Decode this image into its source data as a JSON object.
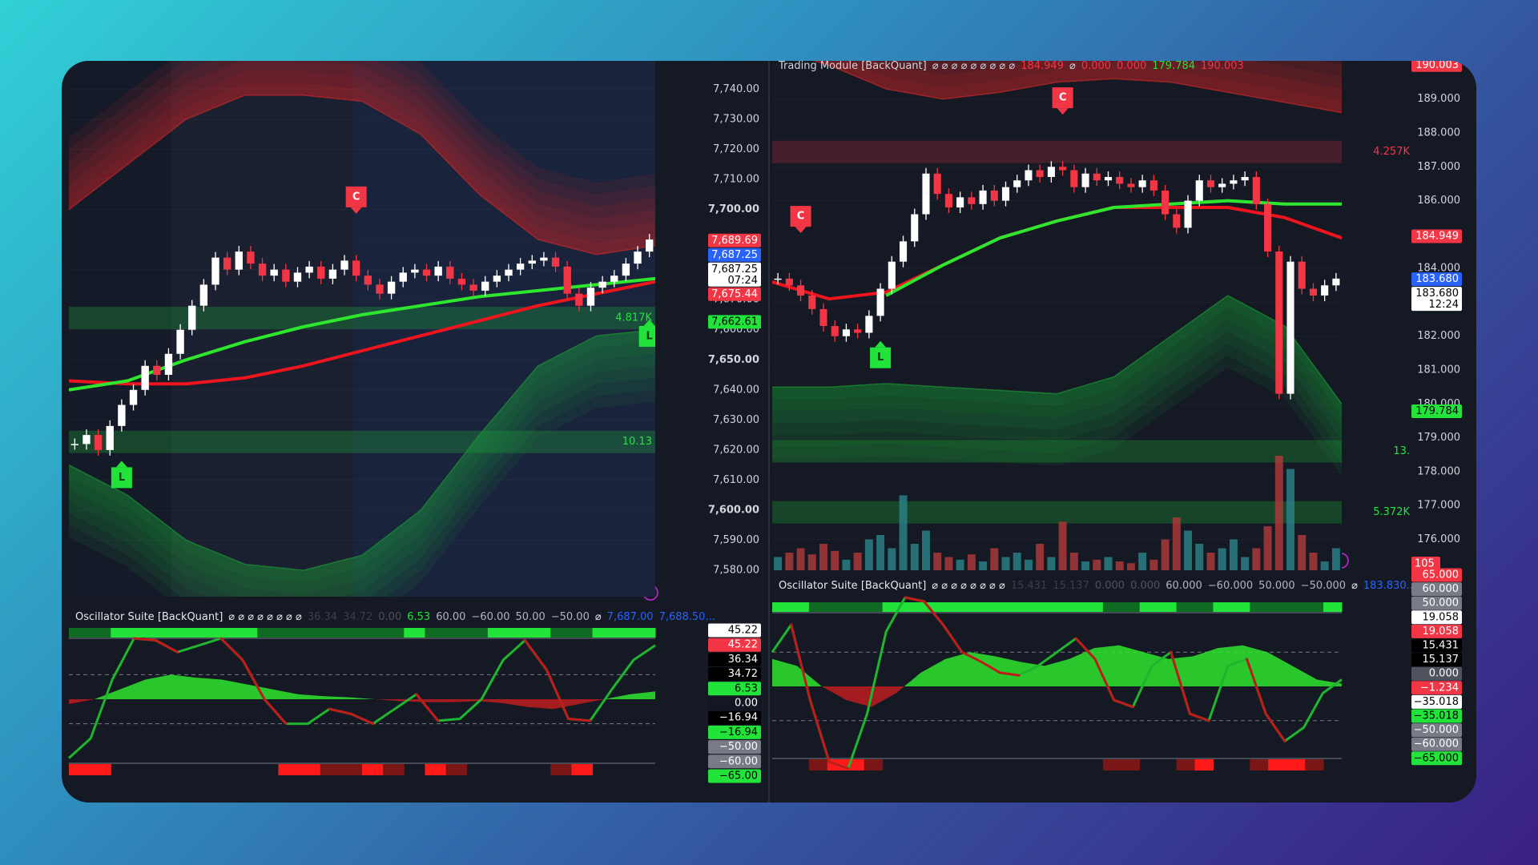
{
  "left": {
    "price_ticks": [
      {
        "value": 7740,
        "label": "7,740.00"
      },
      {
        "value": 7730,
        "label": "7,730.00"
      },
      {
        "value": 7720,
        "label": "7,720.00"
      },
      {
        "value": 7710,
        "label": "7,710.00"
      },
      {
        "value": 7700,
        "label": "7,700.00"
      },
      {
        "value": 7690,
        "label": "7,690.00"
      },
      {
        "value": 7680,
        "label": "7,680.00"
      },
      {
        "value": 7670,
        "label": "7,670.00"
      },
      {
        "value": 7660,
        "label": "7,660.00"
      },
      {
        "value": 7650,
        "label": "7,650.00"
      },
      {
        "value": 7640,
        "label": "7,640.00"
      },
      {
        "value": 7630,
        "label": "7,630.00"
      },
      {
        "value": 7620,
        "label": "7,620.00"
      },
      {
        "value": 7610,
        "label": "7,610.00"
      },
      {
        "value": 7600,
        "label": "7,600.00"
      },
      {
        "value": 7590,
        "label": "7,590.00"
      },
      {
        "value": 7580,
        "label": "7,580.00"
      }
    ],
    "price_labels": [
      {
        "value": 7689.69,
        "label": "7,689.69",
        "bg": "#f23645",
        "fg": "#ffffff"
      },
      {
        "value": 7687.25,
        "label": "7,687.25",
        "bg": "#2962ff",
        "fg": "#ffffff"
      },
      {
        "value": 7687.25,
        "label": "7,687.25",
        "sub": "07:24",
        "bg": "#ffffff",
        "fg": "#000000"
      },
      {
        "value": 7675.44,
        "label": "7,675.44",
        "bg": "#f23645",
        "fg": "#ffffff"
      },
      {
        "value": 7662.61,
        "label": "7,662.61",
        "bg": "#22e33a",
        "fg": "#000000"
      }
    ],
    "closes": [
      7622,
      7625,
      7620,
      7628,
      7635,
      7640,
      7648,
      7645,
      7652,
      7660,
      7668,
      7675,
      7684,
      7680,
      7686,
      7682,
      7678,
      7680,
      7676,
      7679,
      7681,
      7677,
      7680,
      7683,
      7678,
      7675,
      7672,
      7676,
      7679,
      7680,
      7678,
      7681,
      7677,
      7675,
      7673,
      7676,
      7678,
      7680,
      7682,
      7683,
      7684,
      7681,
      7672,
      7668,
      7674,
      7676,
      7678,
      7682,
      7686,
      7690
    ],
    "candle_colors": {
      "up": "#ffffff",
      "down": "#f23645"
    },
    "lines": [
      {
        "color": "#f0141e",
        "values": [
          7643,
          7642,
          7642,
          7644,
          7648,
          7653,
          7658,
          7663,
          7668,
          7672,
          7676
        ]
      },
      {
        "color": "#2fe62f",
        "values": [
          7640,
          7643,
          7650,
          7656,
          7661,
          7665,
          7668,
          7671,
          7673,
          7675,
          7677
        ]
      }
    ],
    "bands": {
      "upper": [
        7700,
        7715,
        7730,
        7738,
        7738,
        7736,
        7725,
        7705,
        7690,
        7685,
        7688
      ],
      "lower": [
        7615,
        7605,
        7590,
        7582,
        7580,
        7585,
        7600,
        7625,
        7648,
        7658,
        7660
      ],
      "upper_color": "#d42a2a",
      "lower_color": "#1c9e36"
    },
    "signals": [
      {
        "label": "C",
        "index": 24,
        "value": 7697,
        "color": "#f23645"
      },
      {
        "label": "L",
        "index": 4,
        "value": 7618,
        "color": "#22e33a"
      },
      {
        "label": "L",
        "index": 49,
        "value": 7665,
        "color": "#22e33a"
      }
    ],
    "annotations": [
      {
        "label": "10.13",
        "value": 7622.7,
        "color": "#22e33a"
      },
      {
        "label": "4.817K",
        "value": 7663.9,
        "color": "#22e33a"
      }
    ],
    "oscillator": {
      "header": [
        {
          "text": "Oscillator Suite [BackQuant]",
          "color": "#e6e8ee"
        },
        {
          "text": "⌀ ⌀ ⌀ ⌀ ⌀ ⌀ ⌀ ⌀",
          "color": "#e6e8ee"
        },
        {
          "text": "36.34",
          "color": "#3b3f4b"
        },
        {
          "text": "34.72",
          "color": "#3b3f4b"
        },
        {
          "text": "0.00",
          "color": "#50535e"
        },
        {
          "text": "6.53",
          "color": "#22e33a"
        },
        {
          "text": "60.00",
          "color": "#b2b5be"
        },
        {
          "text": "−60.00",
          "color": "#b2b5be"
        },
        {
          "text": "50.00",
          "color": "#b2b5be"
        },
        {
          "text": "−50.00",
          "color": "#b2b5be"
        },
        {
          "text": "⌀",
          "color": "#e6e8ee"
        },
        {
          "text": "7,687.00",
          "color": "#2962ff"
        },
        {
          "text": "7,688.50...",
          "color": "#2962ff"
        }
      ],
      "fast": [
        -60,
        -40,
        20,
        62,
        60,
        48,
        55,
        62,
        40,
        0,
        -25,
        -25,
        -10,
        -15,
        -25,
        -10,
        5,
        -22,
        -20,
        0,
        40,
        60,
        30,
        -20,
        -22,
        10,
        40,
        55
      ],
      "slow": [
        -5,
        0,
        10,
        20,
        25,
        22,
        20,
        15,
        10,
        5,
        3,
        2,
        0,
        -2,
        -3,
        -3,
        -2,
        -4,
        -8,
        -10,
        -5,
        0,
        5,
        8
      ],
      "levels": [
        25,
        -25
      ],
      "axis_labels": [
        {
          "label": "45.22",
          "bg": "#ffffff",
          "fg": "#000000"
        },
        {
          "label": "45.22",
          "bg": "#f23645",
          "fg": "#ffffff"
        },
        {
          "label": "36.34",
          "bg": "#000000",
          "fg": "#ffffff"
        },
        {
          "label": "34.72",
          "bg": "#000000",
          "fg": "#ffffff"
        },
        {
          "label": "6.53",
          "bg": "#22e33a",
          "fg": "#000000"
        },
        {
          "label": "0.00",
          "bg": "#131722",
          "fg": "#ffffff"
        },
        {
          "label": "−16.94",
          "bg": "#000000",
          "fg": "#ffffff"
        },
        {
          "label": "−16.94",
          "bg": "#22e33a",
          "fg": "#000000"
        },
        {
          "label": "−50.00",
          "bg": "#787b86",
          "fg": "#ffffff"
        },
        {
          "label": "−60.00",
          "bg": "#787b86",
          "fg": "#ffffff"
        },
        {
          "label": "−65.00",
          "bg": "#22e33a",
          "fg": "#000000"
        }
      ]
    }
  },
  "right": {
    "top_header": [
      {
        "text": "Trading Module [BackQuant]",
        "color": "#d1d4dc"
      },
      {
        "text": "⌀ ⌀ ⌀ ⌀ ⌀ ⌀ ⌀ ⌀ ⌀",
        "color": "#d1d4dc"
      },
      {
        "text": "184.949",
        "color": "#f23645"
      },
      {
        "text": "⌀",
        "color": "#d1d4dc"
      },
      {
        "text": "0.000",
        "color": "#f23645"
      },
      {
        "text": "0.000",
        "color": "#f23645"
      },
      {
        "text": "179.784",
        "color": "#22e33a"
      },
      {
        "text": "190.003",
        "color": "#f23645"
      }
    ],
    "price_ticks": [
      {
        "value": 190,
        "label": "190.000"
      },
      {
        "value": 189,
        "label": "189.000"
      },
      {
        "value": 188,
        "label": "188.000"
      },
      {
        "value": 187,
        "label": "187.000"
      },
      {
        "value": 186,
        "label": "186.000"
      },
      {
        "value": 185,
        "label": "185.000"
      },
      {
        "value": 184,
        "label": "184.000"
      },
      {
        "value": 183,
        "label": "183.000"
      },
      {
        "value": 182,
        "label": "182.000"
      },
      {
        "value": 181,
        "label": "181.000"
      },
      {
        "value": 180,
        "label": "180.000"
      },
      {
        "value": 179,
        "label": "179.000"
      },
      {
        "value": 178,
        "label": "178.000"
      },
      {
        "value": 177,
        "label": "177.000"
      },
      {
        "value": 176,
        "label": "176.000"
      }
    ],
    "price_labels": [
      {
        "value": 190.003,
        "label": "190.003",
        "bg": "#f23645",
        "fg": "#ffffff"
      },
      {
        "value": 184.949,
        "label": "184.949",
        "bg": "#f23645",
        "fg": "#ffffff"
      },
      {
        "value": 183.68,
        "label": "183.680",
        "bg": "#2962ff",
        "fg": "#ffffff"
      },
      {
        "value": 183.68,
        "label": "183.680",
        "sub": "12:24",
        "bg": "#ffffff",
        "fg": "#000000"
      },
      {
        "value": 179.784,
        "label": "179.784",
        "bg": "#22e33a",
        "fg": "#000000"
      }
    ],
    "closes": [
      183.7,
      183.5,
      183.2,
      182.8,
      182.3,
      182.0,
      182.2,
      182.1,
      182.6,
      183.4,
      184.2,
      184.8,
      185.6,
      186.8,
      186.2,
      185.8,
      186.1,
      185.9,
      186.3,
      186.0,
      186.4,
      186.6,
      186.9,
      186.7,
      187.0,
      186.9,
      186.4,
      186.8,
      186.6,
      186.7,
      186.5,
      186.4,
      186.6,
      186.3,
      185.6,
      185.2,
      186.0,
      186.6,
      186.4,
      186.5,
      186.6,
      186.7,
      185.9,
      184.5,
      180.3,
      184.2,
      183.4,
      183.2,
      183.5,
      183.7
    ],
    "candle_colors": {
      "up": "#ffffff",
      "down": "#f23645"
    },
    "volume": {
      "ylim": [
        0,
        100
      ],
      "values": [
        15,
        20,
        25,
        18,
        30,
        22,
        12,
        20,
        35,
        40,
        25,
        85,
        30,
        45,
        20,
        15,
        12,
        18,
        10,
        25,
        15,
        20,
        12,
        30,
        15,
        55,
        20,
        10,
        12,
        15,
        10,
        8,
        20,
        12,
        35,
        60,
        45,
        30,
        20,
        25,
        35,
        15,
        25,
        50,
        130,
        115,
        40,
        20,
        10,
        25
      ],
      "colors": {
        "up": "#2a7f86",
        "down": "#a83a3a"
      },
      "label": "105",
      "label_bg": "#f23645"
    },
    "lines": [
      {
        "color": "#f0141e",
        "values": [
          183.6,
          183.1,
          183.3,
          184.1,
          184.9,
          185.4,
          185.8,
          185.8,
          185.8,
          185.5,
          184.9
        ]
      },
      {
        "color": "#2fe62f",
        "values": [
          null,
          null,
          183.2,
          184.1,
          184.9,
          185.4,
          185.8,
          185.9,
          186.0,
          185.9,
          185.9
        ]
      }
    ],
    "bands": {
      "upper": [
        190.5,
        190,
        189.3,
        189,
        189.2,
        189.5,
        189.6,
        189.5,
        189.2,
        188.9,
        188.6
      ],
      "lower": [
        180.5,
        180.5,
        180.6,
        180.5,
        180.4,
        180.3,
        180.8,
        182,
        183.2,
        182.3,
        180.0
      ],
      "upper_color": "#d42a2a",
      "lower_color": "#1c9e36"
    },
    "signals": [
      {
        "label": "C",
        "index": 2,
        "value": 184.9,
        "color": "#f23645"
      },
      {
        "label": "C",
        "index": 25,
        "value": 188.4,
        "color": "#f23645"
      },
      {
        "label": "L",
        "index": 9,
        "value": 182.0,
        "color": "#22e33a"
      }
    ],
    "annotations": [
      {
        "label": "4.257K",
        "value": 187.44,
        "color": "#f23645"
      },
      {
        "label": "13.",
        "value": 178.6,
        "color": "#22e33a"
      },
      {
        "label": "5.372K",
        "value": 176.8,
        "color": "#22e33a"
      }
    ],
    "oscillator": {
      "header": [
        {
          "text": "Oscillator Suite [BackQuant]",
          "color": "#e6e8ee"
        },
        {
          "text": "⌀ ⌀ ⌀ ⌀ ⌀ ⌀ ⌀ ⌀",
          "color": "#e6e8ee"
        },
        {
          "text": "15.431",
          "color": "#3b3f4b"
        },
        {
          "text": "15.137",
          "color": "#3b3f4b"
        },
        {
          "text": "0.000",
          "color": "#50535e"
        },
        {
          "text": "0.000",
          "color": "#50535e"
        },
        {
          "text": "60.000",
          "color": "#b2b5be"
        },
        {
          "text": "−60.000",
          "color": "#b2b5be"
        },
        {
          "text": "50.000",
          "color": "#b2b5be"
        },
        {
          "text": "−50.000",
          "color": "#b2b5be"
        },
        {
          "text": "⌀",
          "color": "#e6e8ee"
        },
        {
          "text": "183.830...",
          "color": "#2962ff"
        }
      ],
      "fast": [
        25,
        45,
        -10,
        -55,
        -60,
        -20,
        40,
        65,
        62,
        45,
        25,
        18,
        10,
        8,
        15,
        25,
        35,
        20,
        -10,
        -15,
        15,
        25,
        -20,
        -25,
        15,
        20,
        -20,
        -40,
        -30,
        -5,
        5
      ],
      "slow": [
        20,
        15,
        0,
        -10,
        -15,
        -5,
        10,
        20,
        25,
        22,
        18,
        15,
        20,
        28,
        30,
        25,
        20,
        22,
        28,
        30,
        25,
        15,
        5,
        2
      ],
      "levels": [
        25,
        -25
      ],
      "axis_labels": [
        {
          "label": "65.000",
          "bg": "#f23645",
          "fg": "#ffffff"
        },
        {
          "label": "60.000",
          "bg": "#787b86",
          "fg": "#ffffff"
        },
        {
          "label": "50.000",
          "bg": "#787b86",
          "fg": "#ffffff"
        },
        {
          "label": "19.058",
          "bg": "#ffffff",
          "fg": "#000000"
        },
        {
          "label": "19.058",
          "bg": "#f23645",
          "fg": "#ffffff"
        },
        {
          "label": "15.431",
          "bg": "#000000",
          "fg": "#ffffff"
        },
        {
          "label": "15.137",
          "bg": "#000000",
          "fg": "#ffffff"
        },
        {
          "label": "0.000",
          "bg": "#50535e",
          "fg": "#ffffff"
        },
        {
          "label": "−1.234",
          "bg": "#f23645",
          "fg": "#ffffff"
        },
        {
          "label": "−35.018",
          "bg": "#ffffff",
          "fg": "#000000"
        },
        {
          "label": "−35.018",
          "bg": "#22e33a",
          "fg": "#000000"
        },
        {
          "label": "−50.000",
          "bg": "#787b86",
          "fg": "#ffffff"
        },
        {
          "label": "−60.000",
          "bg": "#787b86",
          "fg": "#ffffff"
        },
        {
          "label": "−65.000",
          "bg": "#22e33a",
          "fg": "#000000"
        }
      ]
    }
  }
}
